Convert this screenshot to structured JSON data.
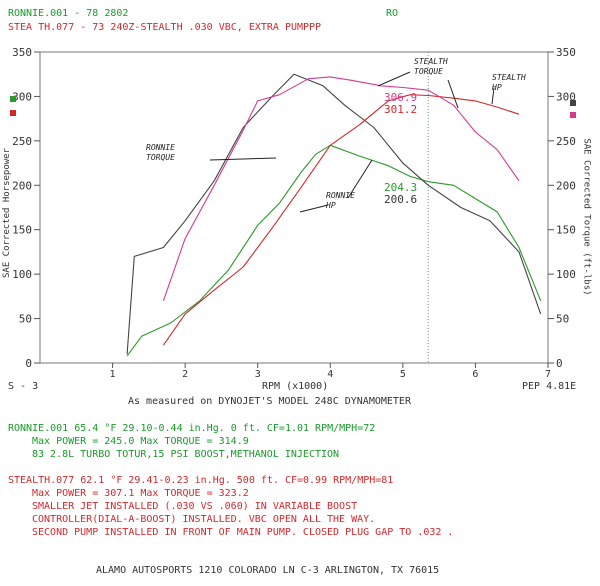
{
  "header": {
    "run1_line": "RONNIE.001 - 78 2802",
    "run1_tag": "RO",
    "run2_line": "STEA TH.077 - 73 240Z-STEALTH   .030 VBC, EXTRA PUMPPP"
  },
  "annotations": {
    "stealth_torque": "STEALTH\nTORQUE",
    "stealth_hp": "STEALTH\nHP",
    "ronnie_torque": "RONNIE\nTORQUE",
    "ronnie_hp": "RONNIE\nHP"
  },
  "colors": {
    "ronnie": "#2a9a2a",
    "stealth": "#d2282c",
    "stealth_torque": "#d63a8f",
    "ronnie_torque": "#444444",
    "grid": "#bbbbbb"
  },
  "chart_data": {
    "type": "line",
    "xlabel": "RPM (x1000)",
    "ylabel_left": "SAE Corrected Horsepower",
    "ylabel_right": "SAE Corrected Torque (ft-lbs)",
    "xlim": [
      0,
      7
    ],
    "ylim": [
      0,
      350
    ],
    "x_ticks": [
      "1",
      "2",
      "3",
      "4",
      "5",
      "6",
      "7"
    ],
    "y_ticks": [
      "0",
      "50",
      "100",
      "150",
      "200",
      "250",
      "300",
      "350"
    ],
    "cursor_rpm": 5.35,
    "readouts": [
      "306.9",
      "301.2",
      "204.3",
      "200.6"
    ],
    "series": [
      {
        "name": "RONNIE HP",
        "color": "#2a9a2a",
        "x": [
          1.2,
          1.4,
          1.8,
          2.2,
          2.6,
          3.0,
          3.3,
          3.6,
          3.8,
          4.0,
          4.4,
          4.8,
          5.1,
          5.35,
          5.7,
          6.0,
          6.3,
          6.6,
          6.9
        ],
        "values": [
          8,
          30,
          45,
          70,
          105,
          155,
          180,
          215,
          235,
          245,
          233,
          222,
          210,
          204,
          200,
          185,
          170,
          130,
          70
        ]
      },
      {
        "name": "RONNIE TORQUE",
        "color": "#444444",
        "x": [
          1.2,
          1.3,
          1.7,
          2.0,
          2.4,
          2.8,
          3.2,
          3.5,
          3.9,
          4.2,
          4.6,
          5.0,
          5.35,
          5.8,
          6.2,
          6.6,
          6.9
        ],
        "values": [
          10,
          120,
          130,
          160,
          205,
          265,
          300,
          325,
          312,
          290,
          265,
          225,
          200,
          175,
          160,
          125,
          55
        ]
      },
      {
        "name": "STEALTH HP",
        "color": "#d2282c",
        "x": [
          1.7,
          2.0,
          2.4,
          2.8,
          3.2,
          3.6,
          4.0,
          4.4,
          4.8,
          5.1,
          5.35,
          5.7,
          6.0,
          6.3,
          6.6
        ],
        "values": [
          20,
          55,
          82,
          108,
          152,
          198,
          245,
          268,
          295,
          302,
          301,
          298,
          295,
          288,
          280
        ]
      },
      {
        "name": "STEALTH TORQUE",
        "color": "#d63a8f",
        "x": [
          1.7,
          2.0,
          2.4,
          2.8,
          3.0,
          3.3,
          3.7,
          4.0,
          4.3,
          4.7,
          5.0,
          5.35,
          5.7,
          6.0,
          6.3,
          6.6
        ],
        "values": [
          70,
          140,
          200,
          262,
          295,
          302,
          320,
          322,
          318,
          312,
          310,
          307,
          290,
          260,
          240,
          205
        ]
      }
    ]
  },
  "axis": {
    "left_code": "S - 3",
    "right_code": "PEP 4.81E",
    "xlabel": "RPM (x1000)",
    "caption": "As measured on DYNOJET'S MODEL 248C DYNAMOMETER"
  },
  "run1": {
    "line1": "RONNIE.001       65.4 °F   29.10-0.44 in.Hg.   0 ft.  CF=1.01  RPM/MPH=72",
    "line2": "Max POWER = 245.0  Max TORQUE = 314.9",
    "line3": "83 2.8L TURBO TOTUR,15 PSI BOOST,METHANOL INJECTION"
  },
  "run2": {
    "line1": "STEALTH.077       62.1 °F   29.41-0.23 in.Hg.   500 ft.   CF=0.99  RPM/MPH=81",
    "line2": "Max POWER = 307.1  Max TORQUE = 323.2",
    "line3": "SMALLER JET INSTALLED (.030 VS .060) IN VARIABLE BOOST",
    "line4": "CONTROLLER(DIAL-A-BOOST) INSTALLED. VBC OPEN ALL THE WAY.",
    "line5": "SECOND PUMP INSTALLED IN FRONT OF MAIN PUMP.  CLOSED PLUG GAP TO .032 ."
  },
  "footer": "ALAMO AUTOSPORTS 1210 COLORADO LN C-3 ARLINGTON, TX 76015"
}
